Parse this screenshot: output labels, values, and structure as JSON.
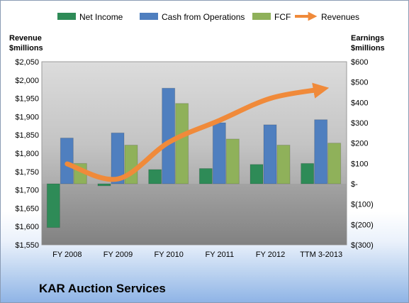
{
  "legend": [
    {
      "name": "Net Income",
      "color": "#2e8b57"
    },
    {
      "name": "Cash from Operations",
      "color": "#4f7fbf"
    },
    {
      "name": "FCF",
      "color": "#8fb15a"
    },
    {
      "name": "Revenues",
      "color": "#f08a3a"
    }
  ],
  "company": "KAR Auction Services",
  "chart_data": {
    "type": "bar",
    "categories": [
      "FY 2008",
      "FY 2009",
      "FY 2010",
      "FY 2011",
      "FY 2012",
      "TTM 3-2013"
    ],
    "left_axis": {
      "title_line1": "Revenue",
      "title_line2": "$millions",
      "range": [
        1550,
        2050
      ],
      "ticks": [
        2050,
        2000,
        1950,
        1900,
        1850,
        1800,
        1750,
        1700,
        1650,
        1600,
        1550
      ],
      "tick_labels": [
        "$2,050",
        "$2,000",
        "$1,950",
        "$1,900",
        "$1,850",
        "$1,800",
        "$1,750",
        "$1,700",
        "$1,650",
        "$1,600",
        "$1,550"
      ]
    },
    "right_axis": {
      "title_line1": "Earnings",
      "title_line2": "$millions",
      "range": [
        -300,
        600
      ],
      "ticks": [
        600,
        500,
        400,
        300,
        200,
        100,
        0,
        -100,
        -200,
        -300
      ],
      "tick_labels": [
        "$600",
        "$500",
        "$400",
        "$300",
        "$200",
        "$100",
        "$-",
        "$(100)",
        "$(200)",
        "$(300)"
      ]
    },
    "series": [
      {
        "name": "Net Income",
        "axis": "right",
        "kind": "bar",
        "color": "#2e8b57",
        "values": [
          -215,
          -10,
          70,
          75,
          95,
          100
        ]
      },
      {
        "name": "Cash from Operations",
        "axis": "right",
        "kind": "bar",
        "color": "#4f7fbf",
        "values": [
          225,
          250,
          470,
          300,
          290,
          315
        ]
      },
      {
        "name": "FCF",
        "axis": "right",
        "kind": "bar",
        "color": "#8fb15a",
        "values": [
          100,
          190,
          395,
          220,
          190,
          200
        ]
      },
      {
        "name": "Revenues",
        "axis": "left",
        "kind": "line",
        "color": "#f08a3a",
        "values": [
          1771,
          1730,
          1830,
          1890,
          1950,
          1975
        ]
      }
    ],
    "grid": false,
    "legend_position": "top"
  }
}
